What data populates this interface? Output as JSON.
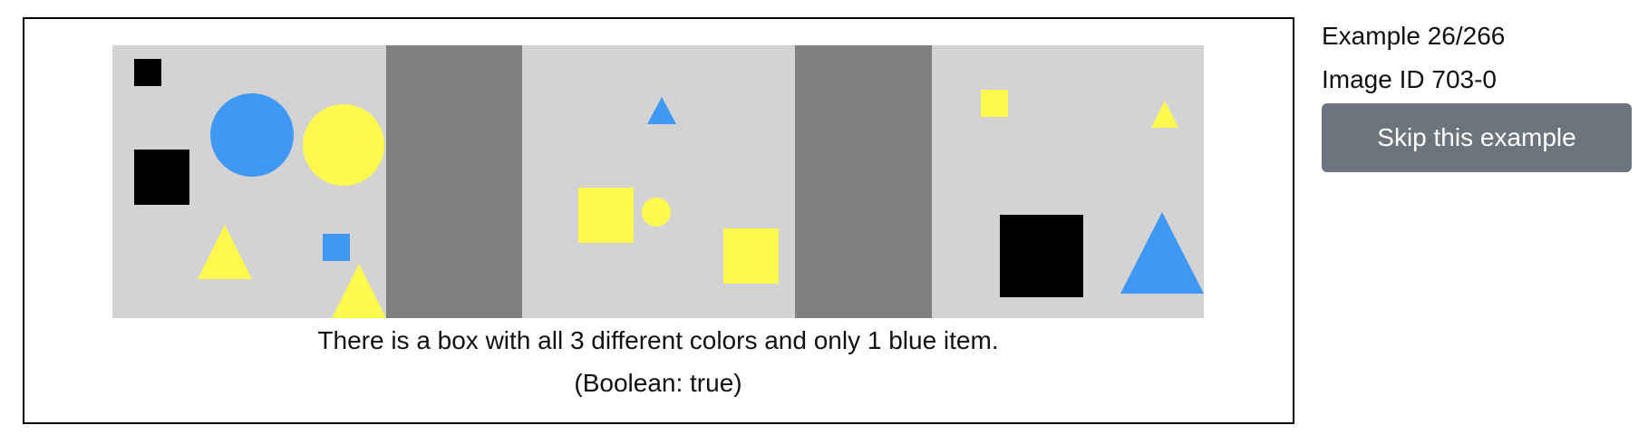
{
  "sidebar": {
    "example_counter": "Example 26/266",
    "image_id": "Image ID 703-0",
    "skip_label": "Skip this example"
  },
  "caption": {
    "statement": "There is a box with all 3 different colors and only 1 blue item.",
    "answer": "(Boolean: true)"
  },
  "scene": {
    "background": "#d3d3d3",
    "divider_color": "#808080",
    "colors": {
      "black": "#000000",
      "blue": "#3f98f4",
      "yellow": "#fdf94f"
    },
    "boxes": [
      {
        "items": [
          "small black square",
          "blue circle",
          "yellow circle",
          "black square",
          "yellow triangle",
          "small blue square",
          "yellow triangle"
        ]
      },
      {
        "items": [
          "small blue triangle",
          "yellow square",
          "small yellow circle",
          "yellow square"
        ]
      },
      {
        "items": [
          "small yellow square",
          "small yellow triangle",
          "black square",
          "blue triangle"
        ]
      }
    ]
  }
}
